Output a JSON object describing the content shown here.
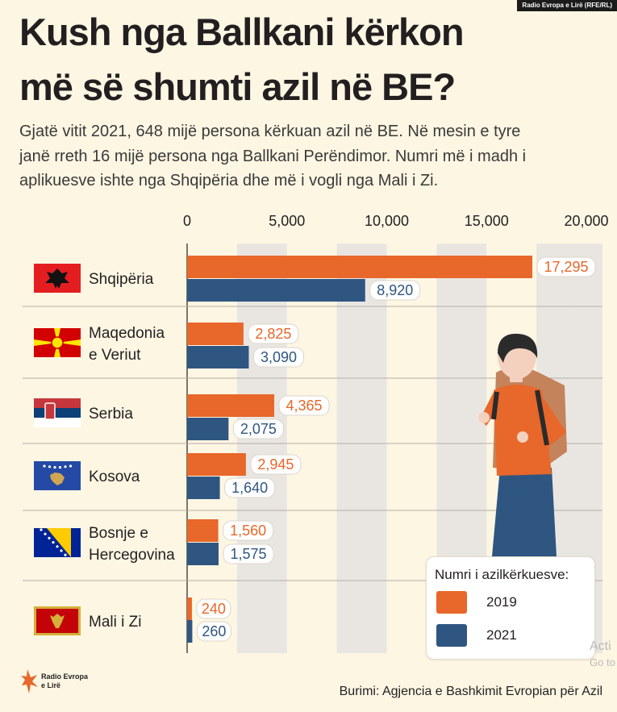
{
  "header": {
    "credit": "Radio Evropa e Lirë (RFE/RL)",
    "title_line1": "Kush nga Ballkani kërkon",
    "title_line2": "më së shumti azil në BE?",
    "subtitle_line1": "Gjatë vitit 2021, 648 mijë persona kërkuan azil në BE. Në mesin e tyre",
    "subtitle_line2": "janë rreth 16 mijë persona nga Ballkani Perëndimor. Numri më i madh i",
    "subtitle_line3": "aplikuesve ishte nga Shqipëria dhe më i vogli nga Mali i Zi."
  },
  "chart_data": {
    "type": "bar",
    "orientation": "horizontal",
    "categories": [
      [
        "Shqipëria"
      ],
      [
        "Maqedonia",
        "e Veriut"
      ],
      [
        "Serbia"
      ],
      [
        "Kosova"
      ],
      [
        "Bosnje e",
        "Hercegovina"
      ],
      [
        "Mali i Zi"
      ]
    ],
    "series": [
      {
        "name": "2019",
        "color": "#e8672a",
        "values": [
          17295,
          2825,
          4365,
          2945,
          1560,
          240
        ],
        "labels": [
          "17,295",
          "2,825",
          "4,365",
          "2,945",
          "1,560",
          "240"
        ]
      },
      {
        "name": "2021",
        "color": "#2f5680",
        "values": [
          8920,
          3090,
          2075,
          1640,
          1575,
          260
        ],
        "labels": [
          "8,920",
          "3,090",
          "2,075",
          "1,640",
          "1,575",
          "260"
        ]
      }
    ],
    "xlim": [
      0,
      20000
    ],
    "xticks": [
      0,
      5000,
      10000,
      15000,
      20000
    ],
    "xtick_labels": [
      "0",
      "5,000",
      "10,000",
      "15,000",
      "20,000"
    ],
    "flags": [
      "albania-flag",
      "north-macedonia-flag",
      "serbia-flag",
      "kosovo-flag",
      "bosnia-flag",
      "montenegro-flag"
    ],
    "legend_position": "bottom-right"
  },
  "legend": {
    "title": "Numri i azilkërkuesve:",
    "items": [
      {
        "label": "2019",
        "color": "#e8672a"
      },
      {
        "label": "2021",
        "color": "#2f5680"
      }
    ]
  },
  "footer": {
    "logo_line1": "Radio Evropa",
    "logo_line2": "e Lirë",
    "source": "Burimi: Agjencia e Bashkimit Evropian për Azil"
  },
  "overlay": {
    "activate_line1": "Acti",
    "activate_line2": "Go to"
  }
}
